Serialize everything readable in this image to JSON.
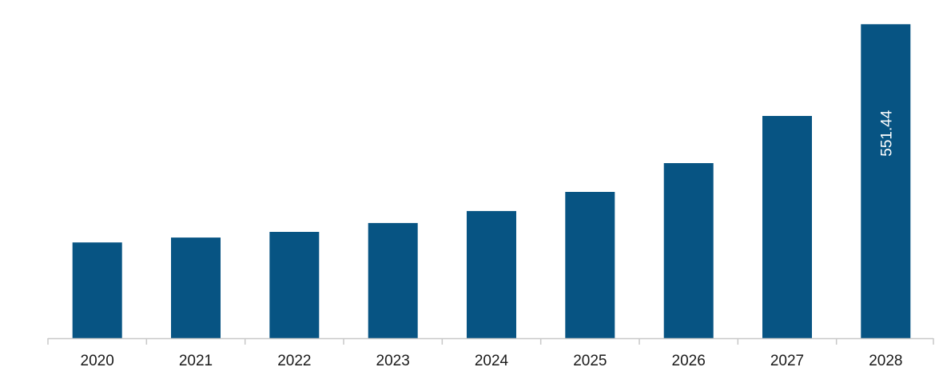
{
  "chart_data": {
    "type": "bar",
    "title": "",
    "xlabel": "",
    "ylabel": "",
    "categories": [
      "2020",
      "2021",
      "2022",
      "2023",
      "2024",
      "2025",
      "2026",
      "2027",
      "2028"
    ],
    "values": [
      168.3,
      176.8,
      186.8,
      202.3,
      223.5,
      257.0,
      307.6,
      390.4,
      551.44
    ],
    "data_labels": [
      "",
      "",
      "",
      "",
      "",
      "",
      "",
      "",
      "551.44"
    ],
    "ylim": [
      0,
      580
    ],
    "grid": false,
    "legend": "none",
    "bar_color": "#075483",
    "axis_color": "#c8c8c8"
  }
}
